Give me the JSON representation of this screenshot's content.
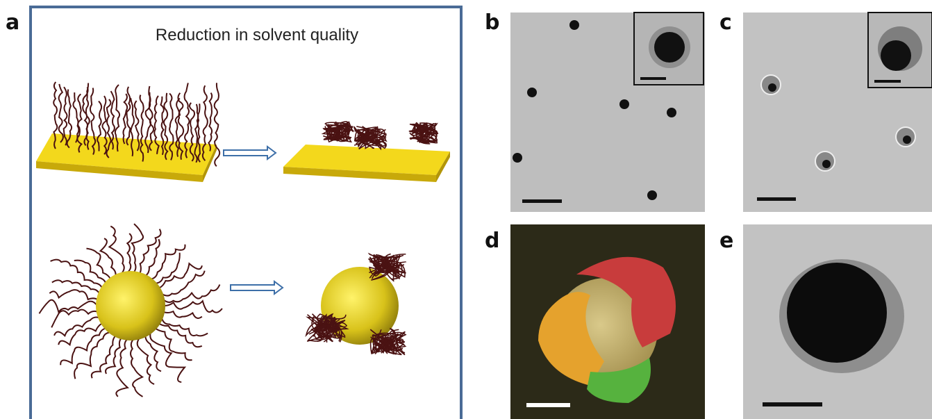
{
  "panel_labels": [
    "a",
    "b",
    "c",
    "d",
    "e"
  ],
  "panel_a": {
    "title": "Reduction in solvent quality"
  }
}
